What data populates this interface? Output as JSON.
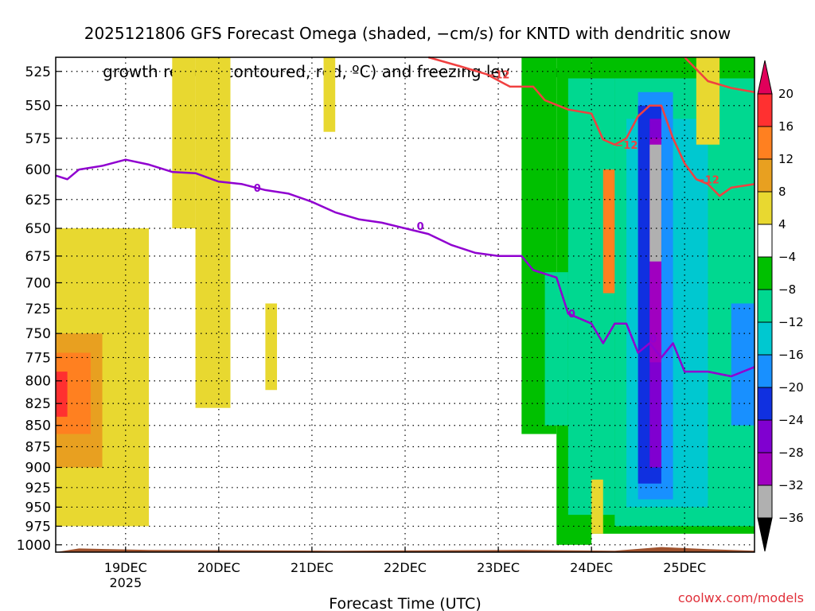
{
  "title": {
    "line1": "2025121806 GFS Forecast Omega (shaded, −cm/s) for KNTD with dendritic snow",
    "line2": "growth region (contoured, red, ºC) and freezing level (contoured, purple, ºC)"
  },
  "credit": "coolwx.com/models",
  "chart_data": {
    "type": "heatmap",
    "xlabel": "Forecast Time (UTC)",
    "ylabel": "",
    "x_type": "date",
    "xlim": [
      "2025-12-18T06:00",
      "2025-12-25T18:00"
    ],
    "ylim": [
      1010,
      515
    ],
    "y_scale": "log",
    "y_ticks": [
      525,
      550,
      575,
      600,
      625,
      650,
      675,
      700,
      725,
      750,
      775,
      800,
      825,
      850,
      875,
      900,
      925,
      950,
      975,
      1000
    ],
    "x_ticks": [
      {
        "t": "2025-12-19T00:00",
        "label": "19DEC",
        "sub": "2025"
      },
      {
        "t": "2025-12-20T00:00",
        "label": "20DEC",
        "sub": ""
      },
      {
        "t": "2025-12-21T00:00",
        "label": "21DEC",
        "sub": ""
      },
      {
        "t": "2025-12-22T00:00",
        "label": "22DEC",
        "sub": ""
      },
      {
        "t": "2025-12-23T00:00",
        "label": "23DEC",
        "sub": ""
      },
      {
        "t": "2025-12-24T00:00",
        "label": "24DEC",
        "sub": ""
      },
      {
        "t": "2025-12-25T00:00",
        "label": "25DEC",
        "sub": ""
      }
    ],
    "grid": true,
    "colorbar": {
      "labels": [
        20,
        16,
        12,
        8,
        4,
        -4,
        -8,
        -12,
        -16,
        -20,
        -24,
        -28,
        -32,
        -36
      ],
      "colors": [
        "#e0005a",
        "#ff3030",
        "#ff8020",
        "#e8a020",
        "#e8d830",
        "#ffffff",
        "#00c000",
        "#00d890",
        "#00c8d0",
        "#1890ff",
        "#1030e0",
        "#8000d0",
        "#a000c0",
        "#b0b0b0",
        "#000000"
      ]
    },
    "cells": [
      {
        "x": [
          "2025-12-18T06:00",
          "2025-12-19T06:00"
        ],
        "p": [
          975,
          650
        ],
        "value": 4
      },
      {
        "x": [
          "2025-12-18T06:00",
          "2025-12-18T18:00"
        ],
        "p": [
          900,
          750
        ],
        "value": 8
      },
      {
        "x": [
          "2025-12-18T06:00",
          "2025-12-18T15:00"
        ],
        "p": [
          860,
          770
        ],
        "value": 12
      },
      {
        "x": [
          "2025-12-18T06:00",
          "2025-12-18T09:00"
        ],
        "p": [
          840,
          790
        ],
        "value": 16
      },
      {
        "x": [
          "2025-12-18T06:00",
          "2025-12-18T12:00"
        ],
        "p": [
          600,
          515
        ],
        "value": -4
      },
      {
        "x": [
          "2025-12-18T12:00",
          "2025-12-18T18:00"
        ],
        "p": [
          560,
          515
        ],
        "value": -4
      },
      {
        "x": [
          "2025-12-19T12:00",
          "2025-12-19T18:00"
        ],
        "p": [
          650,
          515
        ],
        "value": 4
      },
      {
        "x": [
          "2025-12-19T18:00",
          "2025-12-20T03:00"
        ],
        "p": [
          830,
          515
        ],
        "value": 4
      },
      {
        "x": [
          "2025-12-20T12:00",
          "2025-12-20T15:00"
        ],
        "p": [
          810,
          720
        ],
        "value": 4
      },
      {
        "x": [
          "2025-12-21T03:00",
          "2025-12-21T06:00"
        ],
        "p": [
          570,
          515
        ],
        "value": 4
      },
      {
        "x": [
          "2025-12-23T03:00",
          "2025-12-23T09:00"
        ],
        "p": [
          860,
          515
        ],
        "value": -4
      },
      {
        "x": [
          "2025-12-23T06:00",
          "2025-12-23T15:00"
        ],
        "p": [
          860,
          515
        ],
        "value": -8
      },
      {
        "x": [
          "2025-12-23T15:00",
          "2025-12-24T00:00"
        ],
        "p": [
          1000,
          515
        ],
        "value": -8
      },
      {
        "x": [
          "2025-12-24T00:00",
          "2025-12-25T18:00"
        ],
        "p": [
          985,
          515
        ],
        "value": -8
      },
      {
        "x": [
          "2025-12-23T12:00",
          "2025-12-23T18:00"
        ],
        "p": [
          850,
          690
        ],
        "value": -12
      },
      {
        "x": [
          "2025-12-23T18:00",
          "2025-12-24T06:00"
        ],
        "p": [
          960,
          530
        ],
        "value": -12
      },
      {
        "x": [
          "2025-12-24T00:00",
          "2025-12-24T03:00"
        ],
        "p": [
          985,
          915
        ],
        "value": 4
      },
      {
        "x": [
          "2025-12-24T03:00",
          "2025-12-24T06:00"
        ],
        "p": [
          710,
          600
        ],
        "value": 12
      },
      {
        "x": [
          "2025-12-24T06:00",
          "2025-12-25T18:00"
        ],
        "p": [
          975,
          530
        ],
        "value": -12
      },
      {
        "x": [
          "2025-12-24T09:00",
          "2025-12-25T06:00"
        ],
        "p": [
          950,
          560
        ],
        "value": -16
      },
      {
        "x": [
          "2025-12-24T12:00",
          "2025-12-24T21:00"
        ],
        "p": [
          940,
          540
        ],
        "value": -20
      },
      {
        "x": [
          "2025-12-24T12:00",
          "2025-12-24T18:00"
        ],
        "p": [
          920,
          550
        ],
        "value": -24
      },
      {
        "x": [
          "2025-12-24T15:00",
          "2025-12-24T18:00"
        ],
        "p": [
          900,
          560
        ],
        "value": -28
      },
      {
        "x": [
          "2025-12-24T15:00",
          "2025-12-24T18:00"
        ],
        "p": [
          780,
          575
        ],
        "value": -32
      },
      {
        "x": [
          "2025-12-24T15:00",
          "2025-12-24T18:00"
        ],
        "p": [
          680,
          580
        ],
        "value": -36
      },
      {
        "x": [
          "2025-12-25T03:00",
          "2025-12-25T09:00"
        ],
        "p": [
          580,
          515
        ],
        "value": 4
      },
      {
        "x": [
          "2025-12-25T12:00",
          "2025-12-25T18:00"
        ],
        "p": [
          850,
          720
        ],
        "value": -20
      }
    ],
    "contours": [
      {
        "name": "−12",
        "color": "#f04040",
        "labels": [
          {
            "t": "2025-12-22T21:00",
            "p": 527,
            "text": "−12"
          },
          {
            "t": "2025-12-24T06:00",
            "p": 580,
            "text": "−12"
          },
          {
            "t": "2025-12-25T03:00",
            "p": 608,
            "text": "−12"
          }
        ],
        "points": [
          [
            "2025-12-22T06:00",
            515
          ],
          [
            "2025-12-22T15:00",
            522
          ],
          [
            "2025-12-22T21:00",
            527
          ],
          [
            "2025-12-23T03:00",
            536
          ],
          [
            "2025-12-23T09:00",
            536
          ],
          [
            "2025-12-23T12:00",
            546
          ],
          [
            "2025-12-23T18:00",
            553
          ],
          [
            "2025-12-24T00:00",
            556
          ],
          [
            "2025-12-24T03:00",
            576
          ],
          [
            "2025-12-24T06:00",
            580
          ],
          [
            "2025-12-24T09:00",
            575
          ],
          [
            "2025-12-24T12:00",
            558
          ],
          [
            "2025-12-24T15:00",
            550
          ],
          [
            "2025-12-24T18:00",
            550
          ],
          [
            "2025-12-24T21:00",
            575
          ],
          [
            "2025-12-25T00:00",
            595
          ],
          [
            "2025-12-25T03:00",
            608
          ],
          [
            "2025-12-25T06:00",
            612
          ],
          [
            "2025-12-25T09:00",
            622
          ],
          [
            "2025-12-25T12:00",
            615
          ],
          [
            "2025-12-25T18:00",
            612
          ]
        ]
      },
      {
        "name": "−12",
        "color": "#f04040",
        "labels": [],
        "points": [
          [
            "2025-12-25T00:00",
            515
          ],
          [
            "2025-12-25T06:00",
            532
          ],
          [
            "2025-12-25T12:00",
            537
          ],
          [
            "2025-12-25T18:00",
            540
          ]
        ]
      },
      {
        "name": "0",
        "color": "#9000d0",
        "labels": [
          {
            "t": "2025-12-20T09:00",
            "p": 615,
            "text": "0"
          },
          {
            "t": "2025-12-22T03:00",
            "p": 648,
            "text": "0"
          },
          {
            "t": "2025-12-23T18:00",
            "p": 730,
            "text": "0"
          },
          {
            "t": "2025-12-24T15:00",
            "p": 755,
            "text": "0"
          }
        ],
        "points": [
          [
            "2025-12-18T06:00",
            605
          ],
          [
            "2025-12-18T09:00",
            608
          ],
          [
            "2025-12-18T12:00",
            600
          ],
          [
            "2025-12-18T18:00",
            597
          ],
          [
            "2025-12-19T00:00",
            592
          ],
          [
            "2025-12-19T06:00",
            596
          ],
          [
            "2025-12-19T12:00",
            602
          ],
          [
            "2025-12-19T18:00",
            603
          ],
          [
            "2025-12-20T00:00",
            610
          ],
          [
            "2025-12-20T06:00",
            612
          ],
          [
            "2025-12-20T12:00",
            617
          ],
          [
            "2025-12-20T18:00",
            620
          ],
          [
            "2025-12-21T00:00",
            627
          ],
          [
            "2025-12-21T06:00",
            636
          ],
          [
            "2025-12-21T12:00",
            642
          ],
          [
            "2025-12-21T18:00",
            645
          ],
          [
            "2025-12-22T00:00",
            650
          ],
          [
            "2025-12-22T06:00",
            655
          ],
          [
            "2025-12-22T12:00",
            665
          ],
          [
            "2025-12-22T18:00",
            672
          ],
          [
            "2025-12-23T00:00",
            675
          ],
          [
            "2025-12-23T06:00",
            675
          ],
          [
            "2025-12-23T09:00",
            688
          ],
          [
            "2025-12-23T15:00",
            695
          ],
          [
            "2025-12-23T18:00",
            730
          ],
          [
            "2025-12-24T00:00",
            740
          ],
          [
            "2025-12-24T03:00",
            760
          ],
          [
            "2025-12-24T06:00",
            740
          ],
          [
            "2025-12-24T09:00",
            740
          ],
          [
            "2025-12-24T12:00",
            770
          ],
          [
            "2025-12-24T15:00",
            760
          ],
          [
            "2025-12-24T18:00",
            775
          ],
          [
            "2025-12-24T21:00",
            760
          ],
          [
            "2025-12-25T00:00",
            790
          ],
          [
            "2025-12-25T06:00",
            790
          ],
          [
            "2025-12-25T12:00",
            795
          ],
          [
            "2025-12-25T18:00",
            785
          ]
        ]
      }
    ],
    "terrain": {
      "color": "#a0522d",
      "points": [
        [
          "2025-12-18T06:00",
          1012
        ],
        [
          "2025-12-18T12:00",
          1005
        ],
        [
          "2025-12-19T06:00",
          1007
        ],
        [
          "2025-12-21T06:00",
          1008
        ],
        [
          "2025-12-23T06:00",
          1007
        ],
        [
          "2025-12-24T06:00",
          1008
        ],
        [
          "2025-12-24T18:00",
          1003
        ],
        [
          "2025-12-25T06:00",
          1006
        ],
        [
          "2025-12-25T18:00",
          1008
        ]
      ]
    }
  }
}
